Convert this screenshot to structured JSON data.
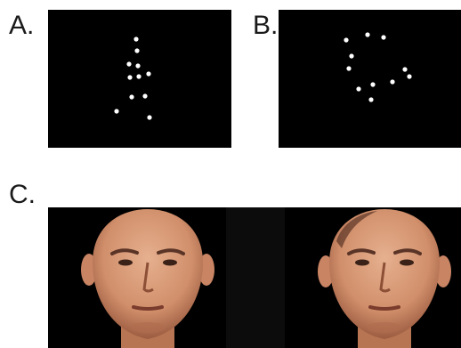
{
  "panels": {
    "a": {
      "label": "A."
    },
    "b": {
      "label": "B."
    },
    "c": {
      "label": "C."
    }
  },
  "colors": {
    "background": "#000000",
    "dot": "#ffffff",
    "skin": "#d99a78",
    "skin_shadow": "#a9674a"
  },
  "faces": {
    "left": {
      "icon": "face-image"
    },
    "right": {
      "icon": "face-image"
    }
  }
}
